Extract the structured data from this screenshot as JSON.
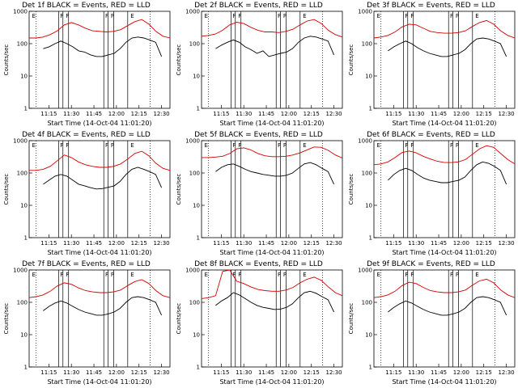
{
  "chart_data": [
    {
      "type": "line",
      "title": "Det 1f BLACK = Events, RED = LLD",
      "xlabel": "Start Time (14-Oct-04 11:01:20)",
      "ylabel": "Counts/sec",
      "x_ticks": [
        "11:15",
        "11:30",
        "11:45",
        "12:00",
        "12:15",
        "12:30"
      ],
      "y_ticks": [
        "1",
        "10",
        "100",
        "1000"
      ],
      "ylim": [
        1,
        1000
      ],
      "y_scale": "log",
      "flag_labels": [
        "E",
        "F",
        "F",
        "F",
        "P",
        "E"
      ],
      "series": [
        {
          "color": "#d40000",
          "values": [
            150,
            150,
            160,
            190,
            250,
            380,
            450,
            380,
            300,
            250,
            240,
            230,
            240,
            270,
            360,
            480,
            560,
            400,
            240,
            170,
            150
          ]
        },
        {
          "color": "#000000",
          "values": [
            70,
            80,
            100,
            120,
            100,
            80,
            60,
            55,
            45,
            40,
            40,
            45,
            50,
            70,
            110,
            150,
            160,
            150,
            130,
            110,
            40
          ]
        }
      ]
    },
    {
      "type": "line",
      "title": "Det 2f BLACK = Events, RED = LLD",
      "xlabel": "Start Time (14-Oct-04 11:01:20)",
      "ylabel": "Counts/sec",
      "x_ticks": [
        "11:15",
        "11:30",
        "11:45",
        "12:00",
        "12:15",
        "12:30"
      ],
      "y_ticks": [
        "1",
        "10",
        "100",
        "1000"
      ],
      "ylim": [
        1,
        1000
      ],
      "y_scale": "log",
      "flag_labels": [
        "E",
        "F",
        "F",
        "F",
        "P",
        "E"
      ],
      "series": [
        {
          "color": "#d40000",
          "values": [
            170,
            180,
            200,
            260,
            380,
            460,
            420,
            320,
            260,
            230,
            230,
            220,
            240,
            280,
            380,
            500,
            560,
            420,
            260,
            190,
            160
          ]
        },
        {
          "color": "#000000",
          "values": [
            70,
            90,
            110,
            130,
            110,
            80,
            65,
            50,
            60,
            40,
            45,
            50,
            55,
            70,
            110,
            150,
            170,
            160,
            140,
            120,
            45
          ]
        }
      ]
    },
    {
      "type": "line",
      "title": "Det 3f BLACK = Events, RED = LLD",
      "xlabel": "Start Time (14-Oct-04 11:01:20)",
      "ylabel": "Counts/sec",
      "x_ticks": [
        "11:15",
        "11:30",
        "11:45",
        "12:00",
        "12:15",
        "12:30"
      ],
      "y_ticks": [
        "1",
        "10",
        "100",
        "1000"
      ],
      "ylim": [
        1,
        1000
      ],
      "y_scale": "log",
      "flag_labels": [
        "E",
        "F",
        "F",
        "F",
        "P",
        "E"
      ],
      "series": [
        {
          "color": "#d40000",
          "values": [
            150,
            160,
            180,
            230,
            330,
            400,
            380,
            300,
            240,
            220,
            210,
            210,
            220,
            250,
            340,
            450,
            520,
            400,
            250,
            180,
            150
          ]
        },
        {
          "color": "#000000",
          "values": [
            60,
            80,
            100,
            120,
            100,
            75,
            60,
            50,
            45,
            40,
            40,
            45,
            50,
            65,
            100,
            140,
            150,
            140,
            120,
            100,
            40
          ]
        }
      ]
    },
    {
      "type": "line",
      "title": "Det 4f BLACK = Events, RED = LLD",
      "xlabel": "Start Time (14-Oct-04 11:01:20)",
      "ylabel": "Counts/sec",
      "x_ticks": [
        "11:15",
        "11:30",
        "11:45",
        "12:00",
        "12:15",
        "12:30"
      ],
      "y_ticks": [
        "1",
        "10",
        "100",
        "1000"
      ],
      "ylim": [
        1,
        1000
      ],
      "y_scale": "log",
      "flag_labels": [
        "E",
        "F",
        "F",
        "F",
        "P",
        "E"
      ],
      "series": [
        {
          "color": "#d40000",
          "values": [
            120,
            120,
            130,
            160,
            240,
            360,
            300,
            220,
            180,
            160,
            150,
            150,
            160,
            190,
            270,
            400,
            470,
            340,
            200,
            140,
            120
          ]
        },
        {
          "color": "#000000",
          "values": [
            45,
            60,
            80,
            90,
            80,
            60,
            45,
            40,
            35,
            32,
            33,
            36,
            40,
            55,
            90,
            130,
            150,
            130,
            110,
            90,
            35
          ]
        }
      ]
    },
    {
      "type": "line",
      "title": "Det 5f BLACK = Events, RED = LLD",
      "xlabel": "Start Time (14-Oct-04 11:01:20)",
      "ylabel": "Counts/sec",
      "x_ticks": [
        "11:15",
        "11:30",
        "11:45",
        "12:00",
        "12:15",
        "12:30"
      ],
      "y_ticks": [
        "1",
        "10",
        "100",
        "1000"
      ],
      "ylim": [
        1,
        1000
      ],
      "y_scale": "log",
      "flag_labels": [
        "E",
        "F",
        "F",
        "F",
        "P",
        "E"
      ],
      "series": [
        {
          "color": "#d40000",
          "values": [
            300,
            300,
            310,
            330,
            400,
            560,
            600,
            520,
            400,
            340,
            320,
            320,
            330,
            360,
            420,
            520,
            640,
            620,
            500,
            360,
            290
          ]
        },
        {
          "color": "#000000",
          "values": [
            110,
            150,
            180,
            190,
            160,
            130,
            110,
            100,
            90,
            85,
            80,
            80,
            85,
            100,
            140,
            190,
            210,
            180,
            140,
            110,
            45
          ]
        }
      ]
    },
    {
      "type": "line",
      "title": "Det 6f BLACK = Events, RED = LLD",
      "xlabel": "Start Time (14-Oct-04 11:01:20)",
      "ylabel": "Counts/sec",
      "x_ticks": [
        "11:15",
        "11:30",
        "11:45",
        "12:00",
        "12:15",
        "12:30"
      ],
      "y_ticks": [
        "1",
        "10",
        "100",
        "1000"
      ],
      "ylim": [
        1,
        1000
      ],
      "y_scale": "log",
      "flag_labels": [
        "E",
        "F",
        "F",
        "F",
        "P",
        "E"
      ],
      "series": [
        {
          "color": "#d40000",
          "values": [
            180,
            190,
            220,
            300,
            430,
            480,
            420,
            330,
            270,
            230,
            210,
            210,
            220,
            260,
            380,
            560,
            700,
            620,
            400,
            260,
            190
          ]
        },
        {
          "color": "#000000",
          "values": [
            60,
            90,
            120,
            140,
            120,
            90,
            70,
            60,
            55,
            50,
            50,
            55,
            60,
            75,
            120,
            180,
            220,
            200,
            160,
            120,
            45
          ]
        }
      ]
    },
    {
      "type": "line",
      "title": "Det 7f BLACK = Events, RED = LLD",
      "xlabel": "Start Time (14-Oct-04 11:01:20)",
      "ylabel": "Counts/sec",
      "x_ticks": [
        "11:15",
        "11:30",
        "11:45",
        "12:00",
        "12:15",
        "12:30"
      ],
      "y_ticks": [
        "1",
        "10",
        "100",
        "1000"
      ],
      "ylim": [
        1,
        1000
      ],
      "y_scale": "log",
      "flag_labels": [
        "E",
        "F",
        "F",
        "F",
        "P",
        "E"
      ],
      "series": [
        {
          "color": "#d40000",
          "values": [
            140,
            150,
            170,
            220,
            320,
            400,
            360,
            280,
            230,
            210,
            200,
            200,
            210,
            240,
            330,
            440,
            500,
            380,
            230,
            160,
            140
          ]
        },
        {
          "color": "#000000",
          "values": [
            55,
            75,
            95,
            110,
            95,
            75,
            60,
            50,
            45,
            40,
            40,
            44,
            50,
            65,
            100,
            140,
            150,
            140,
            120,
            100,
            40
          ]
        }
      ]
    },
    {
      "type": "line",
      "title": "Det 8f BLACK = Events, RED = LLD",
      "xlabel": "Start Time (14-Oct-04 11:01:20)",
      "ylabel": "Counts/sec",
      "x_ticks": [
        "11:15",
        "11:30",
        "11:45",
        "12:00",
        "12:15",
        "12:30"
      ],
      "y_ticks": [
        "1",
        "10",
        "100",
        "1000"
      ],
      "ylim": [
        1,
        1000
      ],
      "y_scale": "log",
      "flag_labels": [
        "E",
        "F",
        "F",
        "F",
        "P",
        "E"
      ],
      "series": [
        {
          "color": "#d40000",
          "values": [
            130,
            140,
            160,
            900,
            1000,
            450,
            380,
            300,
            250,
            230,
            220,
            220,
            240,
            290,
            400,
            520,
            600,
            480,
            300,
            200,
            160
          ]
        },
        {
          "color": "#000000",
          "values": [
            80,
            110,
            140,
            200,
            170,
            130,
            100,
            80,
            70,
            65,
            60,
            62,
            70,
            90,
            140,
            200,
            220,
            190,
            150,
            120,
            50
          ]
        }
      ]
    },
    {
      "type": "line",
      "title": "Det 9f BLACK = Events, RED = LLD",
      "xlabel": "Start Time (14-Oct-04 11:01:20)",
      "ylabel": "Counts/sec",
      "x_ticks": [
        "11:15",
        "11:30",
        "11:45",
        "12:00",
        "12:15",
        "12:30"
      ],
      "y_ticks": [
        "1",
        "10",
        "100",
        "1000"
      ],
      "ylim": [
        1,
        1000
      ],
      "y_scale": "log",
      "flag_labels": [
        "E",
        "F",
        "F",
        "F",
        "P",
        "E"
      ],
      "series": [
        {
          "color": "#d40000",
          "values": [
            140,
            150,
            170,
            220,
            330,
            420,
            380,
            290,
            230,
            210,
            200,
            200,
            210,
            240,
            340,
            460,
            520,
            400,
            240,
            170,
            140
          ]
        },
        {
          "color": "#000000",
          "values": [
            50,
            70,
            90,
            110,
            95,
            75,
            60,
            50,
            45,
            40,
            40,
            44,
            50,
            65,
            100,
            140,
            150,
            140,
            120,
            100,
            40
          ]
        }
      ]
    }
  ]
}
